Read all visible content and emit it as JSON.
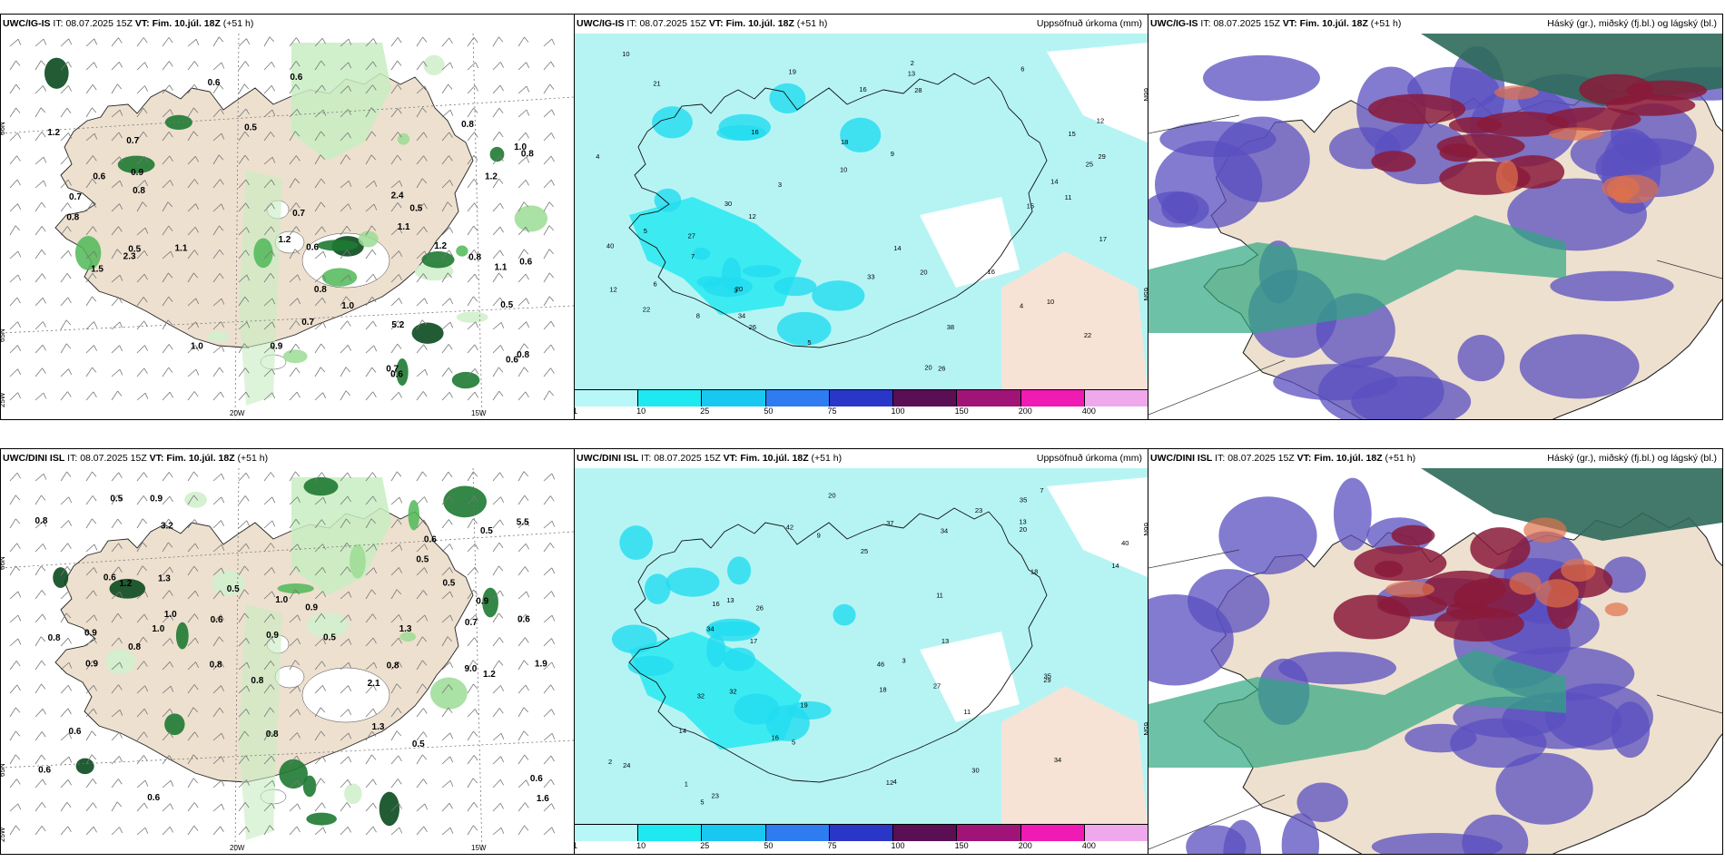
{
  "panels": [
    {
      "model": "UWC/IG-IS",
      "it_label": "IT:",
      "it": "08.07.2025 15Z",
      "vt_label": "VT:",
      "vt": "Fim. 10.júl. 18Z",
      "lead": "(+51 h)",
      "title_right": "",
      "kind": "precip-wind",
      "labels": [
        "0.5",
        "0.8",
        "0.8",
        "1.2",
        "0.5",
        "0.7",
        "0.8",
        "0.5",
        "0.6",
        "0.9",
        "0.6",
        "2.4",
        "0.5",
        "0.6",
        "0.7",
        "0.6",
        "1.5",
        "0.6",
        "0.6",
        "0.7",
        "1.2",
        "0.7",
        "1.1",
        "1.1",
        "0.9",
        "0.6",
        "0.8",
        "1.0",
        "0.8",
        "2.3",
        "0.8",
        "1.2",
        "1.0",
        "0.7",
        "1.1",
        "5.2",
        "1.0",
        "0.8",
        "1.2"
      ],
      "lat_labels": [
        "66N",
        "65N",
        "25W"
      ],
      "lon_labels": [
        "20W",
        "15W"
      ]
    },
    {
      "model": "UWC/IG-IS",
      "it_label": "IT:",
      "it": "08.07.2025 15Z",
      "vt_label": "VT:",
      "vt": "Fim. 10.júl. 18Z",
      "lead": "(+51 h)",
      "title_right": "Uppsöfnuð úrkoma (mm)",
      "kind": "accum",
      "labels": [
        "4",
        "3",
        "5",
        "7",
        "6",
        "10",
        "18",
        "22",
        "33",
        "27",
        "20",
        "15",
        "38",
        "40",
        "25",
        "30",
        "26",
        "29",
        "20",
        "15",
        "12",
        "10",
        "14",
        "16",
        "17",
        "21",
        "26",
        "34",
        "22",
        "20",
        "19",
        "28",
        "13",
        "14",
        "16",
        "9",
        "8",
        "12",
        "10",
        "2",
        "3",
        "4",
        "5",
        "6",
        "16",
        "12",
        "11"
      ],
      "lat_labels": [
        "66N",
        "65N"
      ],
      "colorbar": {
        "colors": [
          "#b8f7f7",
          "#1ee8f0",
          "#18c8f0",
          "#2e7cf0",
          "#2a36c8",
          "#5a0e54",
          "#a01478",
          "#f01ab4",
          "#f0a8ec"
        ],
        "ticks": [
          "1",
          "10",
          "25",
          "50",
          "75",
          "100",
          "150",
          "200",
          "400"
        ]
      }
    },
    {
      "model": "UWC/IG-IS",
      "it_label": "IT:",
      "it": "08.07.2025 15Z",
      "vt_label": "VT:",
      "vt": "Fim. 10.júl. 18Z",
      "lead": "(+51 h)",
      "title_right": "Háský (gr.), miðský (fj.bl.) og lágský (bl.)",
      "kind": "cloud"
    },
    {
      "model": "UWC/DINI ISL",
      "it_label": "IT:",
      "it": "08.07.2025 15Z",
      "vt_label": "VT:",
      "vt": "Fim. 10.júl. 18Z",
      "lead": "(+51 h)",
      "title_right": "",
      "kind": "precip-wind",
      "labels": [
        "0.6",
        "0.8",
        "0.9",
        "0.9",
        "0.5",
        "0.8",
        "0.6",
        "0.5",
        "0.6",
        "0.8",
        "1.0",
        "1.0",
        "0.5",
        "0.7",
        "0.5",
        "0.9",
        "1.9",
        "0.9",
        "2.1",
        "0.8",
        "0.6",
        "0.8",
        "1.0",
        "0.6",
        "0.5",
        "0.6",
        "0.8",
        "1.2",
        "1.3",
        "0.6",
        "1.3",
        "0.9",
        "3.2",
        "1.6",
        "5.5",
        "9.0",
        "0.8",
        "1.3",
        "0.9",
        "1.2",
        "0.5",
        "0.6",
        "0.5"
      ],
      "lat_labels": [
        "66N",
        "65N",
        "25W"
      ],
      "lon_labels": [
        "20W",
        "15W"
      ]
    },
    {
      "model": "UWC/DINI ISL",
      "it_label": "IT:",
      "it": "08.07.2025 15Z",
      "vt_label": "VT:",
      "vt": "Fim. 10.júl. 18Z",
      "lead": "(+51 h)",
      "title_right": "Uppsöfnuð úrkoma (mm)",
      "kind": "accum",
      "labels": [
        "4",
        "5",
        "26",
        "18",
        "20",
        "23",
        "35",
        "19",
        "13",
        "14",
        "37",
        "42",
        "46",
        "32",
        "13",
        "34",
        "29",
        "20",
        "17",
        "11",
        "16",
        "14",
        "40",
        "32",
        "35",
        "34",
        "23",
        "18",
        "13",
        "16",
        "30",
        "27",
        "24",
        "34",
        "25",
        "12",
        "11",
        "3",
        "2",
        "1",
        "5",
        "7",
        "9"
      ],
      "lat_labels": [
        "66N",
        "65N"
      ],
      "colorbar": {
        "colors": [
          "#b8f7f7",
          "#1ee8f0",
          "#18c8f0",
          "#2e7cf0",
          "#2a36c8",
          "#5a0e54",
          "#a01478",
          "#f01ab4",
          "#f0a8ec"
        ],
        "ticks": [
          "1",
          "10",
          "25",
          "50",
          "75",
          "100",
          "150",
          "200",
          "400"
        ]
      }
    },
    {
      "model": "UWC/DINI ISL",
      "it_label": "IT:",
      "it": "08.07.2025 15Z",
      "vt_label": "VT:",
      "vt": "Fim. 10.júl. 18Z",
      "lead": "(+51 h)",
      "title_right": "Háský (gr.), miðský (fj.bl.) og lágský (bl.)",
      "kind": "cloud"
    }
  ]
}
